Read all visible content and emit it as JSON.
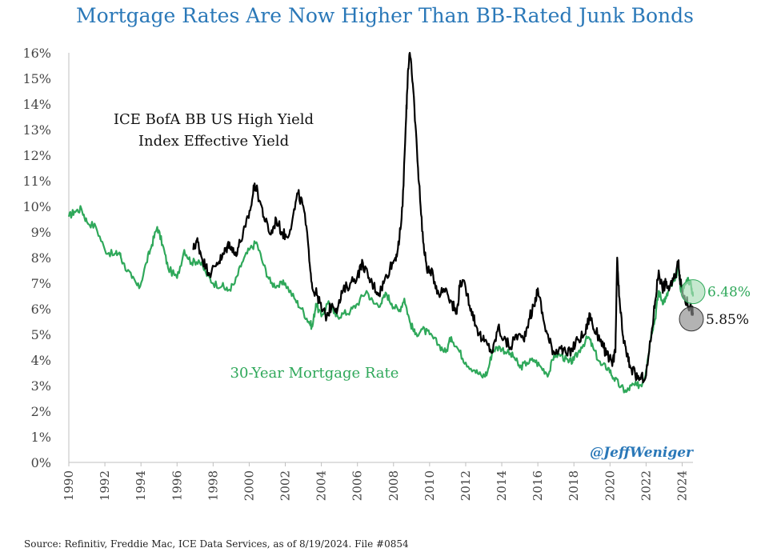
{
  "chart_data": {
    "type": "line",
    "title": "Mortgage Rates Are Now Higher Than BB-Rated Junk Bonds",
    "source": "Source: Refinitiv, Freddie Mac, ICE Data Services, as of 8/19/2024. File #0854",
    "credit": "@JeffWeniger",
    "xlim": [
      1990,
      2024.6
    ],
    "ylim": [
      0,
      16
    ],
    "y_ticks": [
      0,
      1,
      2,
      3,
      4,
      5,
      6,
      7,
      8,
      9,
      10,
      11,
      12,
      13,
      14,
      15,
      16
    ],
    "y_tick_labels": [
      "0%",
      "1%",
      "2%",
      "3%",
      "4%",
      "5%",
      "6%",
      "7%",
      "8%",
      "9%",
      "10%",
      "11%",
      "12%",
      "13%",
      "14%",
      "15%",
      "16%"
    ],
    "x_ticks": [
      1990,
      1992,
      1994,
      1996,
      1998,
      2000,
      2002,
      2004,
      2006,
      2008,
      2010,
      2012,
      2014,
      2016,
      2018,
      2020,
      2022,
      2024
    ],
    "x_tick_labels": [
      "1990",
      "1992",
      "1994",
      "1996",
      "1998",
      "2000",
      "2002",
      "2004",
      "2006",
      "2008",
      "2010",
      "2012",
      "2014",
      "2016",
      "2018",
      "2020",
      "2022",
      "2024"
    ],
    "grid": false,
    "series": [
      {
        "name": "30-Year Mortgage Rate",
        "label_lines": [
          "30-Year Mortgage Rate"
        ],
        "color": "#2fa85a",
        "end_label": "6.48%",
        "points": [
          [
            1990.0,
            9.6
          ],
          [
            1990.3,
            9.8
          ],
          [
            1990.7,
            9.9
          ],
          [
            1991.0,
            9.4
          ],
          [
            1991.5,
            9.2
          ],
          [
            1992.0,
            8.3
          ],
          [
            1992.5,
            8.1
          ],
          [
            1992.8,
            8.2
          ],
          [
            1993.0,
            7.8
          ],
          [
            1993.5,
            7.2
          ],
          [
            1993.9,
            6.8
          ],
          [
            1994.3,
            7.8
          ],
          [
            1994.6,
            8.5
          ],
          [
            1994.9,
            9.2
          ],
          [
            1995.2,
            8.5
          ],
          [
            1995.5,
            7.6
          ],
          [
            1996.0,
            7.2
          ],
          [
            1996.4,
            8.3
          ],
          [
            1996.8,
            7.8
          ],
          [
            1997.2,
            7.9
          ],
          [
            1997.6,
            7.4
          ],
          [
            1998.0,
            7.0
          ],
          [
            1998.5,
            6.9
          ],
          [
            1998.8,
            6.7
          ],
          [
            1999.2,
            7.0
          ],
          [
            1999.6,
            7.8
          ],
          [
            2000.0,
            8.3
          ],
          [
            2000.4,
            8.6
          ],
          [
            2000.8,
            7.7
          ],
          [
            2001.2,
            7.0
          ],
          [
            2001.6,
            6.9
          ],
          [
            2002.0,
            7.0
          ],
          [
            2002.5,
            6.4
          ],
          [
            2002.9,
            6.0
          ],
          [
            2003.3,
            5.5
          ],
          [
            2003.5,
            5.3
          ],
          [
            2003.7,
            6.2
          ],
          [
            2004.0,
            5.7
          ],
          [
            2004.4,
            6.3
          ],
          [
            2004.8,
            5.7
          ],
          [
            2005.2,
            5.8
          ],
          [
            2005.6,
            5.9
          ],
          [
            2006.0,
            6.2
          ],
          [
            2006.5,
            6.7
          ],
          [
            2006.9,
            6.2
          ],
          [
            2007.3,
            6.2
          ],
          [
            2007.6,
            6.6
          ],
          [
            2007.9,
            6.2
          ],
          [
            2008.3,
            5.9
          ],
          [
            2008.6,
            6.4
          ],
          [
            2008.9,
            5.5
          ],
          [
            2009.2,
            5.0
          ],
          [
            2009.6,
            5.2
          ],
          [
            2010.0,
            5.0
          ],
          [
            2010.5,
            4.6
          ],
          [
            2010.9,
            4.3
          ],
          [
            2011.2,
            4.9
          ],
          [
            2011.6,
            4.4
          ],
          [
            2012.0,
            3.9
          ],
          [
            2012.5,
            3.6
          ],
          [
            2012.9,
            3.35
          ],
          [
            2013.2,
            3.5
          ],
          [
            2013.5,
            4.4
          ],
          [
            2013.9,
            4.5
          ],
          [
            2014.3,
            4.3
          ],
          [
            2014.7,
            4.1
          ],
          [
            2015.0,
            3.7
          ],
          [
            2015.4,
            3.9
          ],
          [
            2015.8,
            4.0
          ],
          [
            2016.2,
            3.7
          ],
          [
            2016.6,
            3.45
          ],
          [
            2016.9,
            4.2
          ],
          [
            2017.3,
            4.2
          ],
          [
            2017.7,
            3.9
          ],
          [
            2018.0,
            4.0
          ],
          [
            2018.4,
            4.5
          ],
          [
            2018.8,
            4.9
          ],
          [
            2019.1,
            4.4
          ],
          [
            2019.5,
            3.8
          ],
          [
            2019.9,
            3.7
          ],
          [
            2020.2,
            3.3
          ],
          [
            2020.6,
            2.95
          ],
          [
            2020.9,
            2.75
          ],
          [
            2021.2,
            3.0
          ],
          [
            2021.5,
            3.0
          ],
          [
            2021.8,
            3.1
          ],
          [
            2022.0,
            3.6
          ],
          [
            2022.3,
            5.1
          ],
          [
            2022.5,
            5.6
          ],
          [
            2022.7,
            6.7
          ],
          [
            2022.9,
            6.3
          ],
          [
            2023.1,
            6.4
          ],
          [
            2023.3,
            6.8
          ],
          [
            2023.6,
            7.1
          ],
          [
            2023.8,
            7.7
          ],
          [
            2023.9,
            6.8
          ],
          [
            2024.1,
            6.8
          ],
          [
            2024.3,
            7.2
          ],
          [
            2024.5,
            6.9
          ],
          [
            2024.6,
            6.48
          ]
        ]
      },
      {
        "name": "ICE BofA BB US High Yield Index Effective Yield",
        "label_lines": [
          "ICE BofA BB US High Yield",
          "Index Effective Yield"
        ],
        "color": "#000000",
        "end_label": "5.85%",
        "points": [
          [
            1996.9,
            8.3
          ],
          [
            1997.1,
            8.7
          ],
          [
            1997.3,
            8.2
          ],
          [
            1997.6,
            7.6
          ],
          [
            1997.9,
            7.4
          ],
          [
            1998.2,
            7.8
          ],
          [
            1998.5,
            8.0
          ],
          [
            1998.7,
            8.3
          ],
          [
            1998.9,
            8.6
          ],
          [
            1999.2,
            8.1
          ],
          [
            1999.5,
            8.6
          ],
          [
            1999.8,
            9.2
          ],
          [
            2000.1,
            10.0
          ],
          [
            2000.3,
            10.9
          ],
          [
            2000.6,
            10.2
          ],
          [
            2000.9,
            9.4
          ],
          [
            2001.2,
            8.9
          ],
          [
            2001.5,
            9.5
          ],
          [
            2001.8,
            9.0
          ],
          [
            2002.1,
            8.8
          ],
          [
            2002.4,
            9.5
          ],
          [
            2002.7,
            10.5
          ],
          [
            2003.0,
            10.0
          ],
          [
            2003.3,
            8.3
          ],
          [
            2003.5,
            6.8
          ],
          [
            2003.8,
            6.5
          ],
          [
            2004.0,
            6.0
          ],
          [
            2004.3,
            5.7
          ],
          [
            2004.6,
            6.2
          ],
          [
            2004.9,
            6.0
          ],
          [
            2005.2,
            6.7
          ],
          [
            2005.6,
            7.0
          ],
          [
            2006.0,
            7.3
          ],
          [
            2006.3,
            7.8
          ],
          [
            2006.6,
            7.2
          ],
          [
            2006.9,
            6.9
          ],
          [
            2007.2,
            6.6
          ],
          [
            2007.5,
            7.1
          ],
          [
            2007.8,
            7.6
          ],
          [
            2008.1,
            8.0
          ],
          [
            2008.3,
            8.5
          ],
          [
            2008.5,
            10.0
          ],
          [
            2008.7,
            13.5
          ],
          [
            2008.8,
            15.3
          ],
          [
            2008.9,
            16.0
          ],
          [
            2009.1,
            14.5
          ],
          [
            2009.3,
            12.2
          ],
          [
            2009.5,
            10.0
          ],
          [
            2009.7,
            8.2
          ],
          [
            2009.9,
            7.5
          ],
          [
            2010.2,
            7.3
          ],
          [
            2010.5,
            6.6
          ],
          [
            2010.9,
            6.8
          ],
          [
            2011.2,
            6.3
          ],
          [
            2011.5,
            5.8
          ],
          [
            2011.7,
            7.1
          ],
          [
            2012.0,
            6.8
          ],
          [
            2012.3,
            6.0
          ],
          [
            2012.6,
            5.3
          ],
          [
            2012.9,
            4.8
          ],
          [
            2013.2,
            4.6
          ],
          [
            2013.5,
            4.3
          ],
          [
            2013.8,
            5.3
          ],
          [
            2014.1,
            4.8
          ],
          [
            2014.5,
            4.5
          ],
          [
            2014.8,
            5.0
          ],
          [
            2015.2,
            4.8
          ],
          [
            2015.5,
            5.6
          ],
          [
            2015.8,
            6.1
          ],
          [
            2016.0,
            6.8
          ],
          [
            2016.3,
            5.6
          ],
          [
            2016.6,
            4.8
          ],
          [
            2016.9,
            4.3
          ],
          [
            2017.2,
            4.5
          ],
          [
            2017.6,
            4.2
          ],
          [
            2017.9,
            4.4
          ],
          [
            2018.2,
            4.8
          ],
          [
            2018.6,
            5.0
          ],
          [
            2018.9,
            5.8
          ],
          [
            2019.1,
            5.2
          ],
          [
            2019.5,
            4.8
          ],
          [
            2019.8,
            4.2
          ],
          [
            2020.1,
            3.9
          ],
          [
            2020.3,
            4.3
          ],
          [
            2020.4,
            8.0
          ],
          [
            2020.5,
            6.5
          ],
          [
            2020.7,
            5.0
          ],
          [
            2020.9,
            4.3
          ],
          [
            2021.1,
            3.8
          ],
          [
            2021.4,
            3.4
          ],
          [
            2021.7,
            3.25
          ],
          [
            2022.0,
            3.4
          ],
          [
            2022.3,
            5.0
          ],
          [
            2022.5,
            6.3
          ],
          [
            2022.7,
            7.5
          ],
          [
            2022.9,
            6.8
          ],
          [
            2023.1,
            7.0
          ],
          [
            2023.3,
            6.8
          ],
          [
            2023.6,
            7.2
          ],
          [
            2023.8,
            7.9
          ],
          [
            2023.9,
            7.0
          ],
          [
            2024.1,
            6.5
          ],
          [
            2024.3,
            6.2
          ],
          [
            2024.5,
            6.0
          ],
          [
            2024.6,
            5.85
          ]
        ]
      }
    ]
  }
}
